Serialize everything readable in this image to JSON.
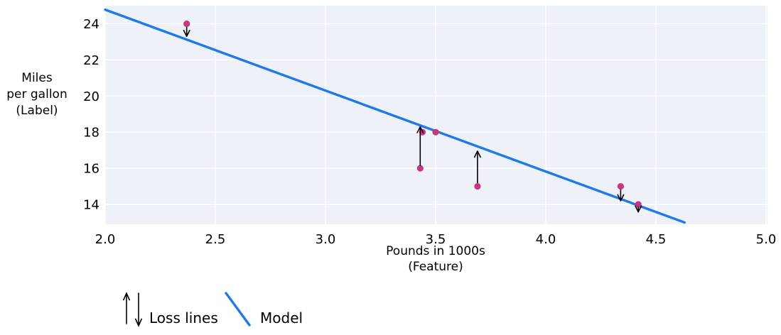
{
  "chart_data": {
    "type": "scatter",
    "title": "",
    "xlabel": "Pounds in 1000s\n(Feature)",
    "ylabel": "Miles\nper gallon\n(Label)",
    "xlim": [
      2.0,
      5.0
    ],
    "ylim": [
      12.9,
      25.0
    ],
    "grid": true,
    "x_ticks": {
      "values": [
        2.0,
        2.5,
        3.0,
        3.5,
        4.0,
        4.5,
        5.0
      ],
      "labels": [
        "2.0",
        "2.5",
        "3.0",
        "3.5",
        "4.0",
        "4.5",
        "5.0"
      ]
    },
    "y_ticks": {
      "values": [
        14,
        16,
        18,
        20,
        22,
        24
      ],
      "labels": [
        "14",
        "16",
        "18",
        "20",
        "22",
        "24"
      ]
    },
    "points": [
      {
        "x": 2.37,
        "y": 24
      },
      {
        "x": 3.44,
        "y": 18
      },
      {
        "x": 3.5,
        "y": 18
      },
      {
        "x": 3.43,
        "y": 16
      },
      {
        "x": 3.69,
        "y": 15
      },
      {
        "x": 4.34,
        "y": 15
      },
      {
        "x": 4.42,
        "y": 14
      }
    ],
    "model_line": {
      "x1": 2.0,
      "y1": 24.78,
      "x2": 4.63,
      "y2": 13.0
    },
    "loss_lines": [
      {
        "x": 2.37,
        "from": 23.8,
        "to": 23.3,
        "direction": "down"
      },
      {
        "x": 3.43,
        "from": 16.15,
        "to": 18.3,
        "direction": "up"
      },
      {
        "x": 3.69,
        "from": 15.2,
        "to": 16.95,
        "direction": "up"
      },
      {
        "x": 4.34,
        "from": 14.8,
        "to": 14.2,
        "direction": "down"
      },
      {
        "x": 4.42,
        "from": 13.85,
        "to": 13.58,
        "direction": "down"
      }
    ],
    "colors": {
      "point": "#c9357e",
      "model_line": "#1e78f0",
      "loss_line": "#000000",
      "plot_bg": "#eef1f8",
      "grid": "#ffffff"
    }
  },
  "legend": {
    "loss_label": "Loss lines",
    "model_label": "Model"
  }
}
